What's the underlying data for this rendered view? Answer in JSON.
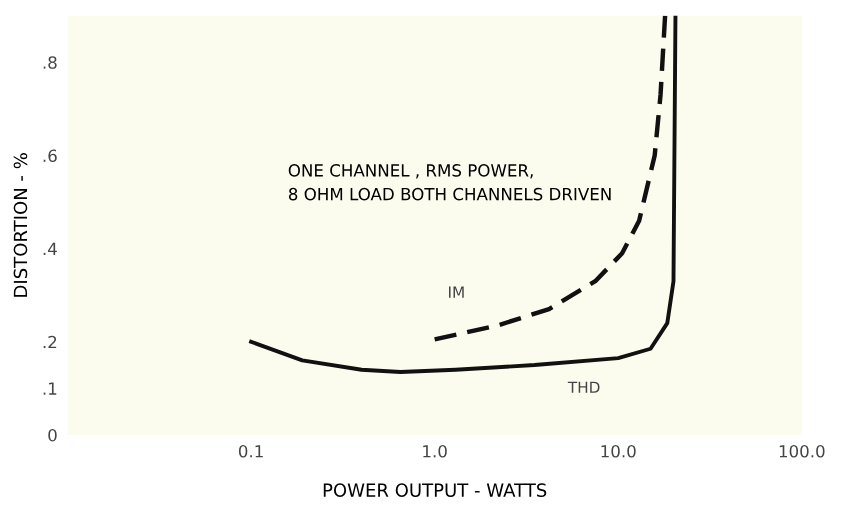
{
  "chart_data": {
    "type": "line",
    "xlabel": "POWER OUTPUT - WATTS",
    "ylabel": "DISTORTION - %",
    "log": "x",
    "xlim": [
      0.01,
      100
    ],
    "xticks": [
      {
        "value": 0.1,
        "label": "0.1"
      },
      {
        "value": 1,
        "label": "1.0"
      },
      {
        "value": 10,
        "label": "10.0"
      },
      {
        "value": 100,
        "label": "100.0"
      }
    ],
    "ylim": [
      0,
      0.9
    ],
    "yticks": [
      {
        "value": 0,
        "label": "0"
      },
      {
        "value": 0.1,
        "label": ".1"
      },
      {
        "value": 0.2,
        "label": ".2"
      },
      {
        "value": 0.4,
        "label": ".4"
      },
      {
        "value": 0.6,
        "label": ".6"
      },
      {
        "value": 0.8,
        "label": ".8"
      }
    ],
    "grid": false,
    "legend": false,
    "series": [
      {
        "name": "THD",
        "color": "#111111",
        "line_style": "solid",
        "x": [
          0.1,
          0.19,
          0.4,
          0.65,
          1.3,
          3.5,
          10,
          15,
          18.5,
          20,
          20.5
        ],
        "values": [
          0.2,
          0.16,
          0.14,
          0.135,
          0.14,
          0.15,
          0.165,
          0.185,
          0.24,
          0.33,
          0.9
        ]
      },
      {
        "name": "IM",
        "color": "#111111",
        "line_style": "dashed",
        "x": [
          1.0,
          2.2,
          4.2,
          7.5,
          10.5,
          13,
          15.8,
          17,
          18
        ],
        "values": [
          0.205,
          0.235,
          0.27,
          0.33,
          0.39,
          0.46,
          0.6,
          0.73,
          0.9
        ]
      }
    ],
    "annotations": [
      "ONE CHANNEL , RMS POWER,\n8 OHM LOAD BOTH CHANNELS DRIVEN"
    ]
  }
}
